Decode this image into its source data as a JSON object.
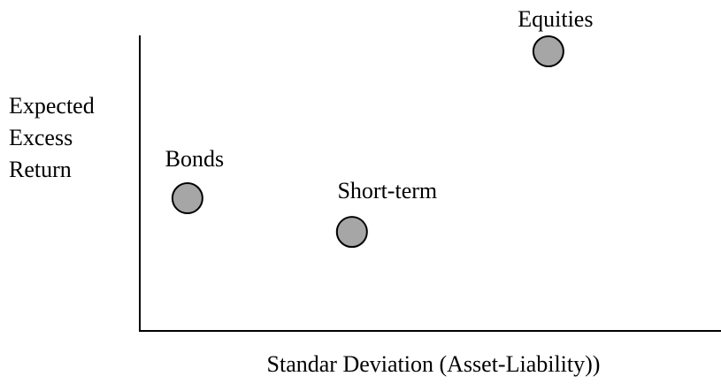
{
  "chart_data": {
    "type": "scatter",
    "x_label": "Standar Deviation (Asset-Liability))",
    "y_label": "Expected Excess Return",
    "series": [
      {
        "name": null,
        "color": "#a6a6a6",
        "labels": [
          "Bonds",
          "Short-term",
          "Equities"
        ],
        "x": [
          8.2,
          36.5,
          70.3
        ],
        "values": [
          44.9,
          33.5,
          94.6
        ]
      }
    ],
    "xlim": [
      0,
      100
    ],
    "ylim": [
      0,
      100
    ]
  }
}
